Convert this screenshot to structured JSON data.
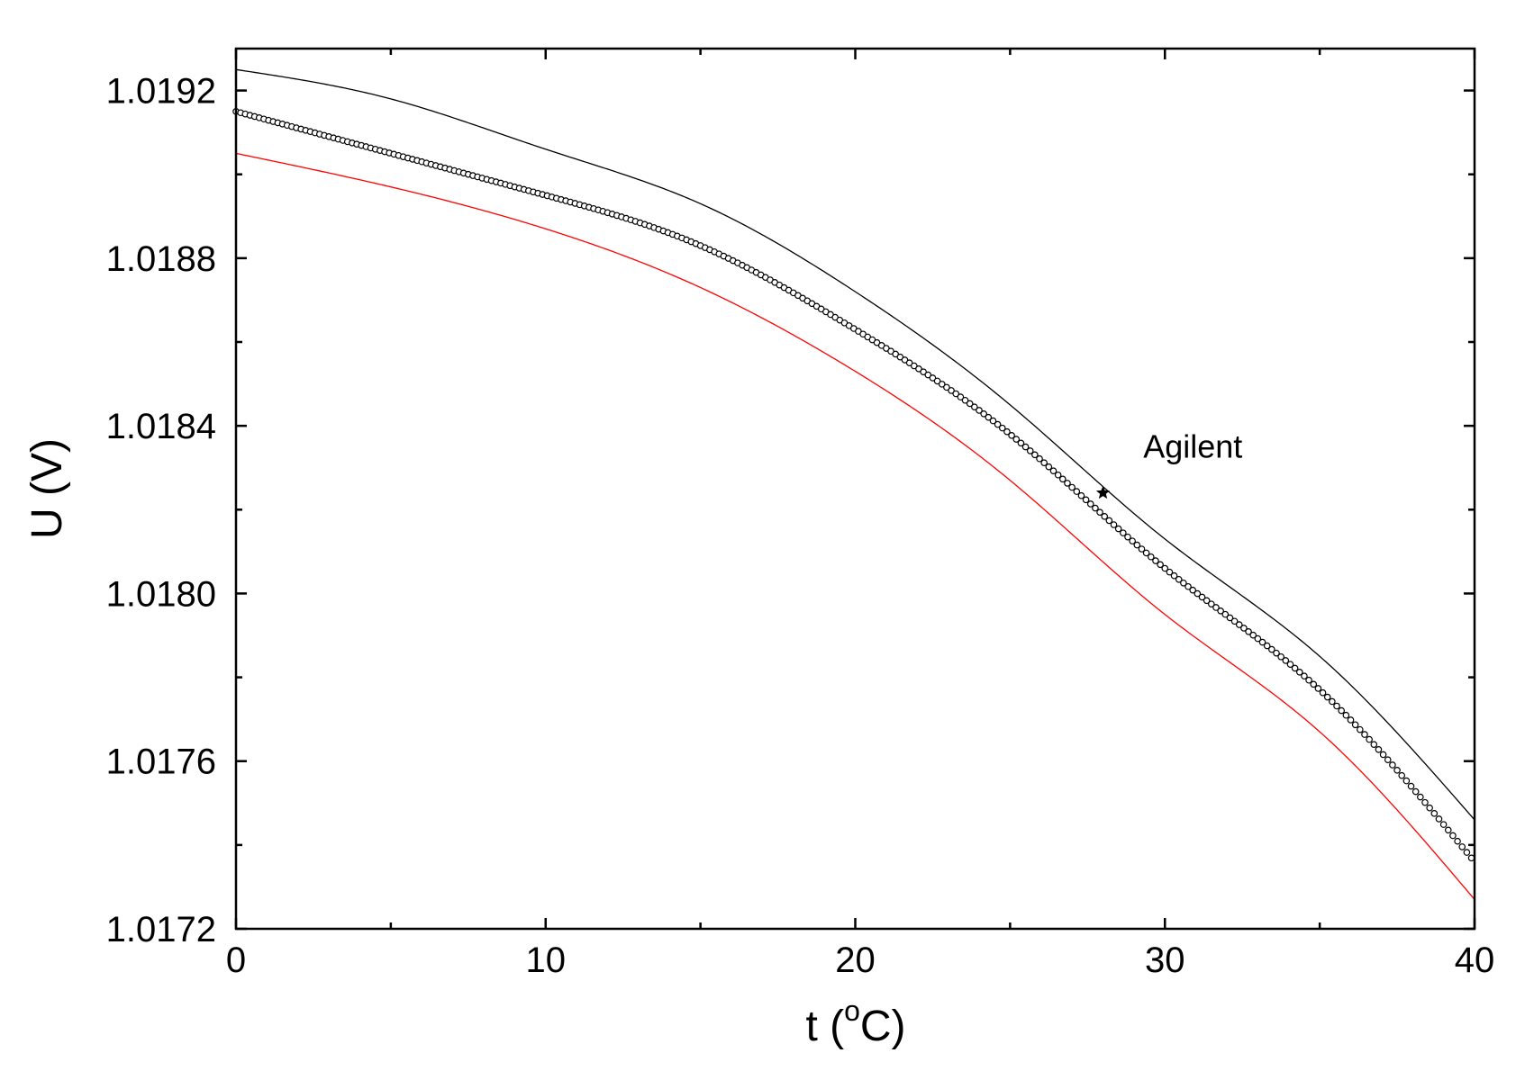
{
  "chart_data": {
    "type": "line",
    "xlabel_main": "t (",
    "xlabel_sup": "o",
    "xlabel_tail": "C)",
    "ylabel": "U (V)",
    "xlim": [
      0,
      40
    ],
    "ylim": [
      1.0172,
      1.0193
    ],
    "xticks": [
      0,
      10,
      20,
      30,
      40
    ],
    "xtick_labels": [
      "0",
      "10",
      "20",
      "30",
      "40"
    ],
    "xminor": [
      5,
      15,
      25,
      35
    ],
    "yticks": [
      1.0172,
      1.0176,
      1.018,
      1.0184,
      1.0188,
      1.0192
    ],
    "ytick_labels": [
      "1.0172",
      "1.0176",
      "1.0180",
      "1.0184",
      "1.0188",
      "1.0192"
    ],
    "yminor": [
      1.0174,
      1.0178,
      1.0182,
      1.0186,
      1.019
    ],
    "grid": false,
    "series": [
      {
        "color": "#000000",
        "style": "line",
        "x": [
          0,
          5,
          10,
          15,
          20,
          25,
          30,
          35,
          40
        ],
        "y": [
          1.01925,
          1.01918,
          1.01906,
          1.01893,
          1.01872,
          1.01845,
          1.01813,
          1.01785,
          1.01746
        ]
      },
      {
        "color": "#000000",
        "style": "circle-markers",
        "x": [
          0,
          5,
          10,
          15,
          20,
          25,
          30,
          35,
          40
        ],
        "y": [
          1.01915,
          1.01905,
          1.01895,
          1.01883,
          1.01863,
          1.01838,
          1.01806,
          1.01777,
          1.01736
        ]
      },
      {
        "color": "#ff0000",
        "style": "line",
        "x": [
          0,
          5,
          10,
          15,
          20,
          25,
          30,
          35,
          40
        ],
        "y": [
          1.01905,
          1.01897,
          1.01887,
          1.01873,
          1.01853,
          1.01827,
          1.01795,
          1.01767,
          1.01727
        ]
      }
    ],
    "annotations": [
      {
        "text": "Agilent",
        "x": 29.3,
        "y": 1.01835
      }
    ],
    "highlight_point": {
      "x": 28,
      "y": 1.01824,
      "marker": "star"
    }
  }
}
